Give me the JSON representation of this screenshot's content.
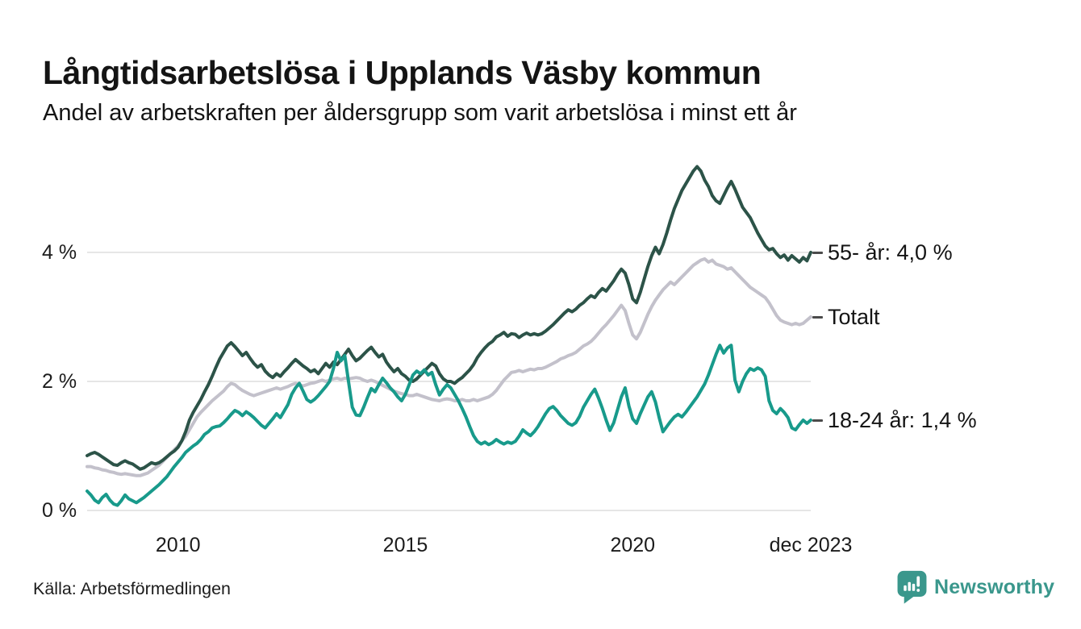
{
  "header": {
    "title": "Långtidsarbetslösa i Upplands Väsby kommun",
    "subtitle": "Andel av arbetskraften per åldersgrupp som varit arbetslösa i minst ett år"
  },
  "footer": {
    "source": "Källa: Arbetsförmedlingen",
    "brand": "Newsworthy",
    "brand_color": "#3a978c",
    "brand_icon": "speech-bubble-bar-chart-icon"
  },
  "chart_data": {
    "type": "line",
    "unit": "%",
    "x_range": {
      "start": "2008-01",
      "end": "2023-12",
      "resolution": "monthly"
    },
    "grid": "horizontal",
    "grid_color": "#e2e2e2",
    "legend_position": "right-of-line-ends",
    "legend_dash_color": "#4b4b4b",
    "ylim": [
      0,
      5.6
    ],
    "y_ticks": [
      {
        "label": "0 %",
        "value": 0
      },
      {
        "label": "2 %",
        "value": 2
      },
      {
        "label": "4 %",
        "value": 4
      }
    ],
    "x_ticks": [
      {
        "label": "2010",
        "month_index": 24
      },
      {
        "label": "2015",
        "month_index": 84
      },
      {
        "label": "2020",
        "month_index": 144
      },
      {
        "label": "dec 2023",
        "month_index": 191
      }
    ],
    "series": [
      {
        "name": "Totalt",
        "legend_label": "Totalt",
        "color": "#c3c1cb",
        "end_value_label": null,
        "values": [
          0.68,
          0.68,
          0.66,
          0.65,
          0.63,
          0.62,
          0.6,
          0.59,
          0.57,
          0.56,
          0.57,
          0.56,
          0.55,
          0.54,
          0.54,
          0.56,
          0.58,
          0.62,
          0.66,
          0.7,
          0.76,
          0.82,
          0.88,
          0.94,
          1.0,
          1.08,
          1.15,
          1.25,
          1.35,
          1.45,
          1.52,
          1.58,
          1.64,
          1.7,
          1.75,
          1.8,
          1.85,
          1.92,
          1.97,
          1.95,
          1.9,
          1.86,
          1.83,
          1.8,
          1.78,
          1.8,
          1.82,
          1.84,
          1.86,
          1.88,
          1.9,
          1.88,
          1.9,
          1.92,
          1.95,
          1.97,
          1.95,
          1.93,
          1.95,
          1.97,
          1.98,
          2.0,
          2.02,
          2.0,
          2.02,
          2.04,
          2.05,
          2.03,
          2.05,
          2.04,
          2.05,
          2.06,
          2.05,
          2.02,
          2.0,
          2.02,
          2.0,
          1.97,
          1.94,
          1.91,
          1.88,
          1.85,
          1.83,
          1.81,
          1.8,
          1.78,
          1.78,
          1.8,
          1.78,
          1.76,
          1.74,
          1.72,
          1.71,
          1.7,
          1.72,
          1.73,
          1.72,
          1.7,
          1.7,
          1.72,
          1.7,
          1.7,
          1.72,
          1.7,
          1.72,
          1.74,
          1.76,
          1.8,
          1.86,
          1.94,
          2.02,
          2.08,
          2.14,
          2.15,
          2.17,
          2.15,
          2.17,
          2.19,
          2.18,
          2.2,
          2.2,
          2.22,
          2.25,
          2.28,
          2.31,
          2.35,
          2.37,
          2.4,
          2.42,
          2.45,
          2.5,
          2.55,
          2.58,
          2.62,
          2.68,
          2.75,
          2.82,
          2.88,
          2.95,
          3.02,
          3.1,
          3.18,
          3.1,
          2.9,
          2.72,
          2.66,
          2.76,
          2.9,
          3.04,
          3.16,
          3.26,
          3.34,
          3.42,
          3.48,
          3.54,
          3.5,
          3.56,
          3.62,
          3.68,
          3.74,
          3.8,
          3.84,
          3.88,
          3.9,
          3.85,
          3.88,
          3.82,
          3.8,
          3.78,
          3.74,
          3.76,
          3.7,
          3.64,
          3.58,
          3.52,
          3.46,
          3.42,
          3.38,
          3.34,
          3.3,
          3.22,
          3.12,
          3.02,
          2.95,
          2.92,
          2.9,
          2.88,
          2.9,
          2.88,
          2.9,
          2.95,
          3.0
        ]
      },
      {
        "name": "55- år",
        "legend_label": "55- år: 4,0 %",
        "color": "#2c5348",
        "end_value_label": "4,0 %",
        "values": [
          0.85,
          0.88,
          0.9,
          0.87,
          0.83,
          0.79,
          0.75,
          0.71,
          0.7,
          0.74,
          0.77,
          0.74,
          0.72,
          0.68,
          0.64,
          0.66,
          0.7,
          0.74,
          0.72,
          0.74,
          0.78,
          0.83,
          0.88,
          0.92,
          0.98,
          1.08,
          1.22,
          1.4,
          1.52,
          1.62,
          1.72,
          1.84,
          1.95,
          2.08,
          2.22,
          2.35,
          2.45,
          2.55,
          2.6,
          2.54,
          2.47,
          2.4,
          2.45,
          2.36,
          2.28,
          2.22,
          2.26,
          2.16,
          2.1,
          2.06,
          2.12,
          2.08,
          2.15,
          2.21,
          2.28,
          2.34,
          2.29,
          2.24,
          2.2,
          2.15,
          2.18,
          2.12,
          2.2,
          2.28,
          2.22,
          2.3,
          2.26,
          2.34,
          2.42,
          2.5,
          2.4,
          2.32,
          2.36,
          2.42,
          2.48,
          2.53,
          2.45,
          2.38,
          2.42,
          2.3,
          2.22,
          2.15,
          2.2,
          2.12,
          2.08,
          2.02,
          2.0,
          2.04,
          2.1,
          2.16,
          2.22,
          2.28,
          2.24,
          2.12,
          2.04,
          2.0,
          2.0,
          1.97,
          2.02,
          2.06,
          2.12,
          2.18,
          2.26,
          2.37,
          2.45,
          2.52,
          2.58,
          2.62,
          2.69,
          2.72,
          2.76,
          2.7,
          2.74,
          2.73,
          2.68,
          2.72,
          2.75,
          2.72,
          2.74,
          2.72,
          2.74,
          2.78,
          2.83,
          2.88,
          2.94,
          3.0,
          3.06,
          3.11,
          3.08,
          3.12,
          3.18,
          3.22,
          3.28,
          3.33,
          3.3,
          3.38,
          3.44,
          3.4,
          3.48,
          3.56,
          3.66,
          3.74,
          3.68,
          3.5,
          3.28,
          3.22,
          3.38,
          3.58,
          3.78,
          3.95,
          4.08,
          3.98,
          4.12,
          4.3,
          4.5,
          4.68,
          4.82,
          4.96,
          5.06,
          5.16,
          5.26,
          5.33,
          5.26,
          5.12,
          5.02,
          4.88,
          4.8,
          4.76,
          4.88,
          5.0,
          5.1,
          4.98,
          4.84,
          4.7,
          4.62,
          4.54,
          4.42,
          4.3,
          4.2,
          4.1,
          4.04,
          4.06,
          3.98,
          3.92,
          3.96,
          3.88,
          3.95,
          3.9,
          3.85,
          3.92,
          3.87,
          4.0
        ]
      },
      {
        "name": "18-24 år",
        "legend_label": "18-24 år: 1,4 %",
        "color": "#189a8b",
        "end_value_label": "1,4 %",
        "values": [
          0.3,
          0.24,
          0.16,
          0.12,
          0.2,
          0.25,
          0.16,
          0.1,
          0.08,
          0.15,
          0.24,
          0.18,
          0.15,
          0.12,
          0.16,
          0.2,
          0.25,
          0.3,
          0.35,
          0.4,
          0.46,
          0.52,
          0.6,
          0.68,
          0.75,
          0.82,
          0.9,
          0.95,
          1.0,
          1.04,
          1.1,
          1.18,
          1.22,
          1.28,
          1.3,
          1.31,
          1.36,
          1.42,
          1.49,
          1.55,
          1.52,
          1.47,
          1.53,
          1.49,
          1.44,
          1.38,
          1.32,
          1.28,
          1.35,
          1.42,
          1.5,
          1.44,
          1.54,
          1.64,
          1.8,
          1.9,
          1.97,
          1.85,
          1.72,
          1.68,
          1.72,
          1.78,
          1.85,
          1.92,
          2.0,
          2.2,
          2.45,
          2.32,
          2.4,
          2.0,
          1.6,
          1.48,
          1.47,
          1.6,
          1.75,
          1.89,
          1.84,
          1.95,
          2.05,
          1.98,
          1.9,
          1.84,
          1.76,
          1.7,
          1.8,
          1.95,
          2.1,
          2.16,
          2.12,
          2.18,
          2.1,
          2.14,
          1.95,
          1.79,
          1.88,
          1.95,
          1.9,
          1.8,
          1.7,
          1.58,
          1.45,
          1.3,
          1.16,
          1.07,
          1.03,
          1.06,
          1.02,
          1.05,
          1.1,
          1.06,
          1.03,
          1.06,
          1.04,
          1.07,
          1.15,
          1.25,
          1.2,
          1.16,
          1.22,
          1.3,
          1.4,
          1.5,
          1.58,
          1.61,
          1.55,
          1.47,
          1.41,
          1.35,
          1.32,
          1.36,
          1.46,
          1.6,
          1.7,
          1.8,
          1.88,
          1.74,
          1.58,
          1.4,
          1.24,
          1.36,
          1.56,
          1.76,
          1.9,
          1.62,
          1.42,
          1.35,
          1.5,
          1.63,
          1.76,
          1.84,
          1.68,
          1.44,
          1.22,
          1.3,
          1.38,
          1.45,
          1.49,
          1.45,
          1.52,
          1.6,
          1.68,
          1.76,
          1.86,
          1.96,
          2.1,
          2.26,
          2.42,
          2.56,
          2.44,
          2.52,
          2.56,
          2.02,
          1.84,
          2.0,
          2.12,
          2.2,
          2.17,
          2.21,
          2.18,
          2.08,
          1.7,
          1.55,
          1.5,
          1.58,
          1.52,
          1.44,
          1.28,
          1.25,
          1.33,
          1.4,
          1.35,
          1.4
        ]
      }
    ]
  }
}
